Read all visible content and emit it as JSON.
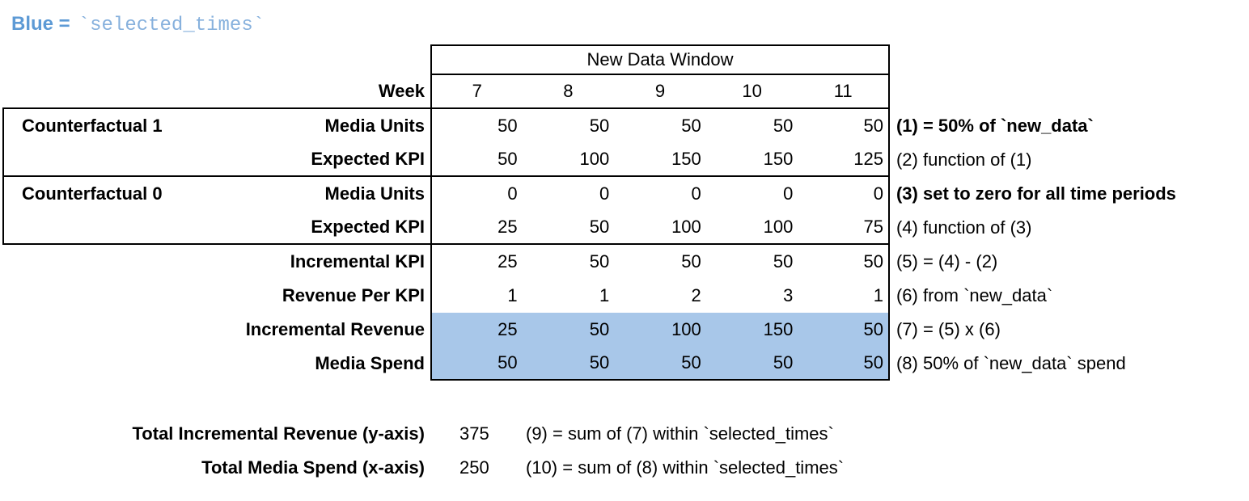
{
  "note": {
    "blue_label": "Blue =",
    "code": "`selected_times`"
  },
  "chart_data": {
    "type": "table",
    "window_header": "New Data Window",
    "week_label": "Week",
    "weeks": [
      7,
      8,
      9,
      10,
      11
    ],
    "rows": [
      {
        "group": "Counterfactual 1",
        "label": "Media Units",
        "values": [
          50,
          50,
          50,
          50,
          50
        ],
        "annotation": "(1) = 50% of `new_data`",
        "highlighted": false
      },
      {
        "group": "",
        "label": "Expected KPI",
        "values": [
          50,
          100,
          150,
          150,
          125
        ],
        "annotation": "(2) function of (1)",
        "highlighted": false
      },
      {
        "group": "Counterfactual 0",
        "label": "Media Units",
        "values": [
          0,
          0,
          0,
          0,
          0
        ],
        "annotation": "(3) set to zero for all time periods",
        "highlighted": false
      },
      {
        "group": "",
        "label": "Expected KPI",
        "values": [
          25,
          50,
          100,
          100,
          75
        ],
        "annotation": "(4) function of (3)",
        "highlighted": false
      },
      {
        "group": "",
        "label": "Incremental KPI",
        "values": [
          25,
          50,
          50,
          50,
          50
        ],
        "annotation": "(5) = (4) - (2)",
        "highlighted": false
      },
      {
        "group": "",
        "label": "Revenue Per KPI",
        "values": [
          1,
          1,
          2,
          3,
          1
        ],
        "annotation": "(6) from `new_data`",
        "highlighted": false
      },
      {
        "group": "",
        "label": "Incremental Revenue",
        "values": [
          25,
          50,
          100,
          150,
          50
        ],
        "annotation": "(7) = (5) x (6)",
        "highlighted": true
      },
      {
        "group": "",
        "label": "Media Spend",
        "values": [
          50,
          50,
          50,
          50,
          50
        ],
        "annotation": "(8) 50% of `new_data` spend",
        "highlighted": true
      }
    ],
    "totals": [
      {
        "label": "Total Incremental Revenue (y-axis)",
        "value": 375,
        "annotation": "(9) = sum of (7) within `selected_times`"
      },
      {
        "label": "Total Media Spend (x-axis)",
        "value": 250,
        "annotation": "(10) = sum of (8) within `selected_times`"
      }
    ]
  },
  "colors": {
    "highlight": "#a8c7e9",
    "legend_blue": "#5d9ad5",
    "legend_code_blue": "#87b1dd",
    "border": "#000000"
  }
}
